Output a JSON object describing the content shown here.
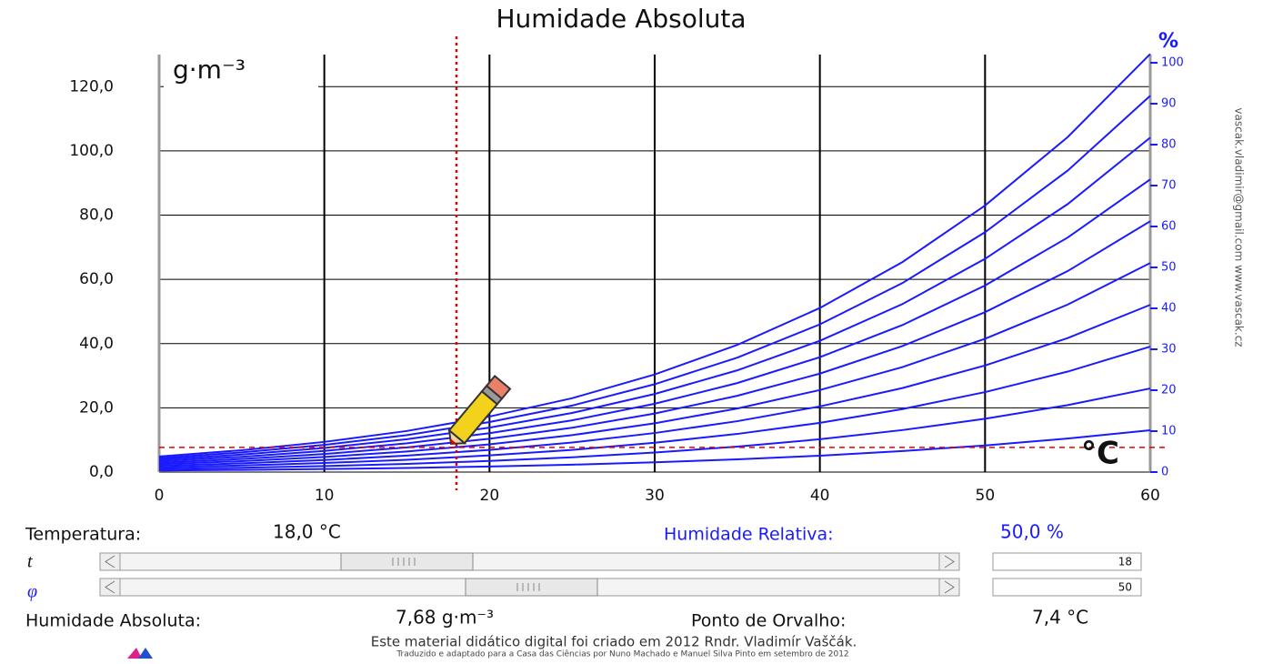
{
  "chart_data": {
    "type": "line",
    "title": "Humidade Absoluta",
    "y_unit": "g·m⁻³",
    "y2_unit": "%",
    "x_unit": "°C",
    "x": [
      0,
      5,
      10,
      15,
      20,
      25,
      30,
      35,
      40,
      45,
      50,
      55,
      60
    ],
    "color": "#1a1aff",
    "series": [
      {
        "values": [
          0.49,
          0.68,
          0.94,
          1.28,
          1.73,
          2.3,
          3.04,
          3.96,
          5.11,
          6.54,
          8.3,
          10.43,
          13.02
        ]
      },
      {
        "values": [
          0.97,
          1.36,
          1.88,
          2.56,
          3.46,
          4.6,
          6.08,
          7.92,
          10.22,
          13.08,
          16.6,
          20.86,
          26.04
        ]
      },
      {
        "values": [
          1.46,
          2.04,
          2.82,
          3.84,
          5.19,
          6.9,
          9.12,
          11.88,
          15.33,
          19.62,
          24.9,
          31.29,
          39.06
        ]
      },
      {
        "values": [
          1.94,
          2.72,
          3.76,
          5.12,
          6.92,
          9.2,
          12.16,
          15.84,
          20.44,
          26.16,
          33.2,
          41.72,
          52.08
        ]
      },
      {
        "values": [
          2.43,
          3.4,
          4.7,
          6.4,
          8.65,
          11.5,
          15.2,
          19.8,
          25.55,
          32.7,
          41.5,
          52.15,
          65.1
        ]
      },
      {
        "values": [
          2.91,
          4.08,
          5.64,
          7.68,
          10.38,
          13.8,
          18.24,
          23.76,
          30.66,
          39.24,
          49.8,
          62.58,
          78.12
        ]
      },
      {
        "values": [
          3.4,
          4.76,
          6.58,
          8.96,
          12.11,
          16.1,
          21.28,
          27.72,
          35.77,
          45.78,
          58.1,
          73.01,
          91.14
        ]
      },
      {
        "values": [
          3.88,
          5.44,
          7.52,
          10.24,
          13.84,
          18.4,
          24.32,
          31.68,
          40.88,
          52.32,
          66.4,
          83.44,
          104.16
        ]
      },
      {
        "values": [
          4.37,
          6.12,
          8.46,
          11.52,
          15.57,
          20.7,
          27.36,
          35.64,
          45.99,
          58.86,
          74.7,
          93.87,
          117.18
        ]
      },
      {
        "values": [
          4.85,
          6.8,
          9.4,
          12.8,
          17.3,
          23,
          30.4,
          39.6,
          51.1,
          65.4,
          83,
          104.3,
          130.2
        ]
      }
    ],
    "xlim": [
      0,
      60
    ],
    "xticks": [
      0,
      10,
      20,
      30,
      40,
      50,
      60
    ],
    "ylim": [
      0,
      130
    ],
    "yticks": [
      {
        "value": 0,
        "label": "0,0"
      },
      {
        "value": 20,
        "label": "20,0"
      },
      {
        "value": 40,
        "label": "40,0"
      },
      {
        "value": 60,
        "label": "60,0"
      },
      {
        "value": 80,
        "label": "80,0"
      },
      {
        "value": 100,
        "label": "100,0"
      },
      {
        "value": 120,
        "label": "120,0"
      }
    ],
    "y2lim": [
      0,
      102
    ],
    "y2ticks": [
      0,
      10,
      20,
      30,
      40,
      50,
      60,
      70,
      80,
      90,
      100
    ],
    "grid": true,
    "cursor": {
      "x": 18,
      "y": 7.68,
      "color": "#e00000"
    }
  },
  "controls": {
    "temperature_label": "Temperatura:",
    "temperature_value": "18,0 °C",
    "relative_humidity_label": "Humidade Relativa:",
    "relative_humidity_value": "50,0 %",
    "sliders": [
      {
        "symbol": "t",
        "value": "18"
      },
      {
        "symbol": "φ",
        "value": "50"
      }
    ],
    "absolute_humidity_label": "Humidade Absoluta:",
    "absolute_humidity_value": "7,68 g·m⁻³",
    "dew_point_label": "Ponto de Orvalho:",
    "dew_point_value": "7,4 °C"
  },
  "side_text": "vascak.vladimir@gmail.com     www.vascak.cz",
  "footer": {
    "line1": "Este material didático digital foi criado em 2012 Rndr. Vladimír Vaščák.",
    "line2": "Traduzido e adaptado para a Casa das Ciências por Nuno Machado e Manuel Silva Pinto em setembro de 2012"
  }
}
